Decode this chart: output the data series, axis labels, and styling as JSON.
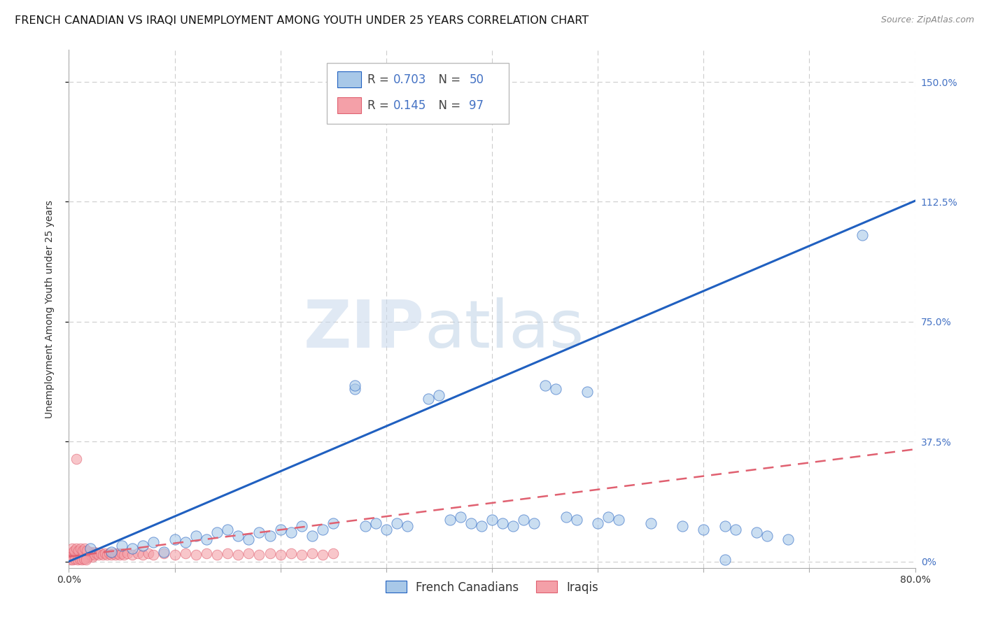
{
  "title": "FRENCH CANADIAN VS IRAQI UNEMPLOYMENT AMONG YOUTH UNDER 25 YEARS CORRELATION CHART",
  "source": "Source: ZipAtlas.com",
  "ylabel": "Unemployment Among Youth under 25 years",
  "ytick_labels": [
    "0%",
    "37.5%",
    "75.0%",
    "112.5%",
    "150.0%"
  ],
  "ytick_values": [
    0.0,
    0.375,
    0.75,
    1.125,
    1.5
  ],
  "xlim": [
    0.0,
    0.8
  ],
  "ylim": [
    -0.02,
    1.6
  ],
  "blue_color": "#a8c8e8",
  "pink_color": "#f4a0a8",
  "blue_line_color": "#2060c0",
  "pink_line_color": "#e06070",
  "blue_regr_intercept": 0.0,
  "blue_regr_slope": 1.41,
  "pink_regr_intercept": 0.015,
  "pink_regr_slope": 0.42,
  "blue_scatter": [
    [
      0.02,
      0.04
    ],
    [
      0.04,
      0.03
    ],
    [
      0.05,
      0.05
    ],
    [
      0.06,
      0.04
    ],
    [
      0.07,
      0.05
    ],
    [
      0.08,
      0.06
    ],
    [
      0.09,
      0.03
    ],
    [
      0.1,
      0.07
    ],
    [
      0.11,
      0.06
    ],
    [
      0.12,
      0.08
    ],
    [
      0.13,
      0.07
    ],
    [
      0.14,
      0.09
    ],
    [
      0.15,
      0.1
    ],
    [
      0.16,
      0.08
    ],
    [
      0.17,
      0.07
    ],
    [
      0.18,
      0.09
    ],
    [
      0.19,
      0.08
    ],
    [
      0.2,
      0.1
    ],
    [
      0.21,
      0.09
    ],
    [
      0.22,
      0.11
    ],
    [
      0.23,
      0.08
    ],
    [
      0.24,
      0.1
    ],
    [
      0.25,
      0.12
    ],
    [
      0.27,
      0.54
    ],
    [
      0.27,
      0.55
    ],
    [
      0.28,
      0.11
    ],
    [
      0.29,
      0.12
    ],
    [
      0.3,
      0.1
    ],
    [
      0.31,
      0.12
    ],
    [
      0.32,
      0.11
    ],
    [
      0.34,
      0.51
    ],
    [
      0.35,
      0.52
    ],
    [
      0.36,
      0.13
    ],
    [
      0.37,
      0.14
    ],
    [
      0.38,
      0.12
    ],
    [
      0.39,
      0.11
    ],
    [
      0.4,
      0.13
    ],
    [
      0.41,
      0.12
    ],
    [
      0.42,
      0.11
    ],
    [
      0.43,
      0.13
    ],
    [
      0.44,
      0.12
    ],
    [
      0.45,
      0.55
    ],
    [
      0.46,
      0.54
    ],
    [
      0.47,
      0.14
    ],
    [
      0.48,
      0.13
    ],
    [
      0.49,
      0.53
    ],
    [
      0.5,
      0.12
    ],
    [
      0.51,
      0.14
    ],
    [
      0.52,
      0.13
    ],
    [
      0.55,
      0.12
    ],
    [
      0.58,
      0.11
    ],
    [
      0.6,
      0.1
    ],
    [
      0.62,
      0.11
    ],
    [
      0.63,
      0.1
    ],
    [
      0.65,
      0.09
    ],
    [
      0.66,
      0.08
    ],
    [
      0.68,
      0.07
    ],
    [
      0.62,
      0.005
    ],
    [
      0.75,
      1.02
    ]
  ],
  "pink_scatter": [
    [
      0.003,
      0.025
    ],
    [
      0.005,
      0.03
    ],
    [
      0.007,
      0.02
    ],
    [
      0.008,
      0.025
    ],
    [
      0.009,
      0.03
    ],
    [
      0.01,
      0.02
    ],
    [
      0.011,
      0.025
    ],
    [
      0.012,
      0.03
    ],
    [
      0.013,
      0.02
    ],
    [
      0.014,
      0.025
    ],
    [
      0.015,
      0.03
    ],
    [
      0.016,
      0.02
    ],
    [
      0.003,
      0.015
    ],
    [
      0.005,
      0.02
    ],
    [
      0.007,
      0.015
    ],
    [
      0.009,
      0.02
    ],
    [
      0.011,
      0.015
    ],
    [
      0.013,
      0.02
    ],
    [
      0.015,
      0.015
    ],
    [
      0.017,
      0.02
    ],
    [
      0.004,
      0.01
    ],
    [
      0.006,
      0.015
    ],
    [
      0.008,
      0.01
    ],
    [
      0.01,
      0.015
    ],
    [
      0.012,
      0.01
    ],
    [
      0.014,
      0.015
    ],
    [
      0.016,
      0.01
    ],
    [
      0.018,
      0.015
    ],
    [
      0.004,
      0.03
    ],
    [
      0.006,
      0.025
    ],
    [
      0.008,
      0.03
    ],
    [
      0.01,
      0.025
    ],
    [
      0.012,
      0.03
    ],
    [
      0.014,
      0.025
    ],
    [
      0.016,
      0.03
    ],
    [
      0.018,
      0.025
    ],
    [
      0.02,
      0.03
    ],
    [
      0.022,
      0.025
    ],
    [
      0.024,
      0.03
    ],
    [
      0.025,
      0.025
    ],
    [
      0.02,
      0.02
    ],
    [
      0.022,
      0.015
    ],
    [
      0.024,
      0.02
    ],
    [
      0.026,
      0.025
    ],
    [
      0.028,
      0.02
    ],
    [
      0.03,
      0.025
    ],
    [
      0.032,
      0.02
    ],
    [
      0.034,
      0.025
    ],
    [
      0.036,
      0.02
    ],
    [
      0.038,
      0.025
    ],
    [
      0.04,
      0.02
    ],
    [
      0.042,
      0.025
    ],
    [
      0.044,
      0.02
    ],
    [
      0.046,
      0.025
    ],
    [
      0.048,
      0.02
    ],
    [
      0.05,
      0.025
    ],
    [
      0.052,
      0.02
    ],
    [
      0.055,
      0.025
    ],
    [
      0.06,
      0.02
    ],
    [
      0.065,
      0.025
    ],
    [
      0.07,
      0.02
    ],
    [
      0.075,
      0.025
    ],
    [
      0.08,
      0.02
    ],
    [
      0.09,
      0.025
    ],
    [
      0.1,
      0.02
    ],
    [
      0.11,
      0.025
    ],
    [
      0.12,
      0.02
    ],
    [
      0.13,
      0.025
    ],
    [
      0.14,
      0.02
    ],
    [
      0.15,
      0.025
    ],
    [
      0.16,
      0.02
    ],
    [
      0.17,
      0.025
    ],
    [
      0.18,
      0.02
    ],
    [
      0.19,
      0.025
    ],
    [
      0.2,
      0.02
    ],
    [
      0.21,
      0.025
    ],
    [
      0.22,
      0.02
    ],
    [
      0.23,
      0.025
    ],
    [
      0.24,
      0.02
    ],
    [
      0.25,
      0.025
    ],
    [
      0.002,
      0.005
    ],
    [
      0.004,
      0.005
    ],
    [
      0.006,
      0.008
    ],
    [
      0.008,
      0.005
    ],
    [
      0.01,
      0.008
    ],
    [
      0.012,
      0.005
    ],
    [
      0.014,
      0.008
    ],
    [
      0.016,
      0.005
    ],
    [
      0.003,
      0.04
    ],
    [
      0.005,
      0.035
    ],
    [
      0.007,
      0.04
    ],
    [
      0.009,
      0.035
    ],
    [
      0.011,
      0.04
    ],
    [
      0.013,
      0.035
    ],
    [
      0.015,
      0.04
    ],
    [
      0.017,
      0.035
    ],
    [
      0.007,
      0.32
    ]
  ],
  "watermark_zip": "ZIP",
  "watermark_atlas": "atlas",
  "title_fontsize": 11.5,
  "source_fontsize": 9,
  "axis_label_fontsize": 10,
  "tick_fontsize": 10,
  "legend_fontsize": 12
}
